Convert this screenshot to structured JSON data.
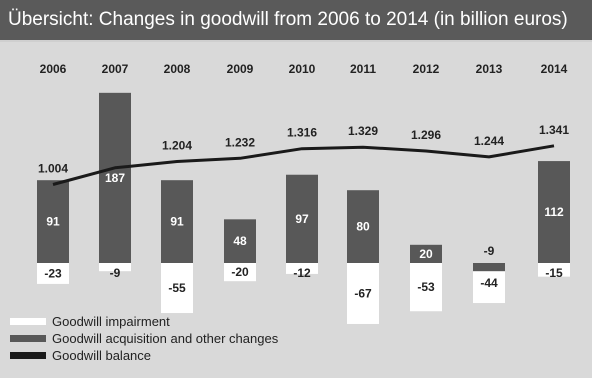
{
  "title": "Übersicht: Changes in goodwill from 2006 to 2014 (in billion euros)",
  "colors": {
    "background": "#d9d9d9",
    "title_bar": "#5a5a5a",
    "impairment": "#ffffff",
    "acquisition": "#585858",
    "balance": "#1a1a1a"
  },
  "chart_data": {
    "type": "bar",
    "categories": [
      "2006",
      "2007",
      "2008",
      "2009",
      "2010",
      "2011",
      "2012",
      "2013",
      "2014"
    ],
    "series": [
      {
        "name": "Goodwill acquisition and other changes",
        "values": [
          91,
          187,
          91,
          48,
          97,
          80,
          20,
          -9,
          112
        ],
        "labels": [
          "91",
          "187",
          "91",
          "48",
          "97",
          "80",
          "20",
          "-9",
          "112"
        ]
      },
      {
        "name": "Goodwill impairment",
        "values": [
          -23,
          -9,
          -55,
          -20,
          -12,
          -67,
          -53,
          -44,
          -15
        ],
        "labels": [
          "-23",
          "-9",
          "-55",
          "-20",
          "-12",
          "-67",
          "-53",
          "-44",
          "-15"
        ]
      },
      {
        "name": "Goodwill balance",
        "type": "line",
        "values": [
          1.004,
          1.15,
          1.204,
          1.232,
          1.316,
          1.329,
          1.296,
          1.244,
          1.341
        ],
        "labels": [
          "1.004",
          "",
          "1.204",
          "1.232",
          "1.316",
          "1.329",
          "1.296",
          "1.244",
          "1.341"
        ]
      }
    ],
    "legend": [
      "Goodwill impairment",
      "Goodwill acquisition and other changes",
      "Goodwill balance"
    ],
    "legend_position": "bottom-left",
    "grid": false
  }
}
